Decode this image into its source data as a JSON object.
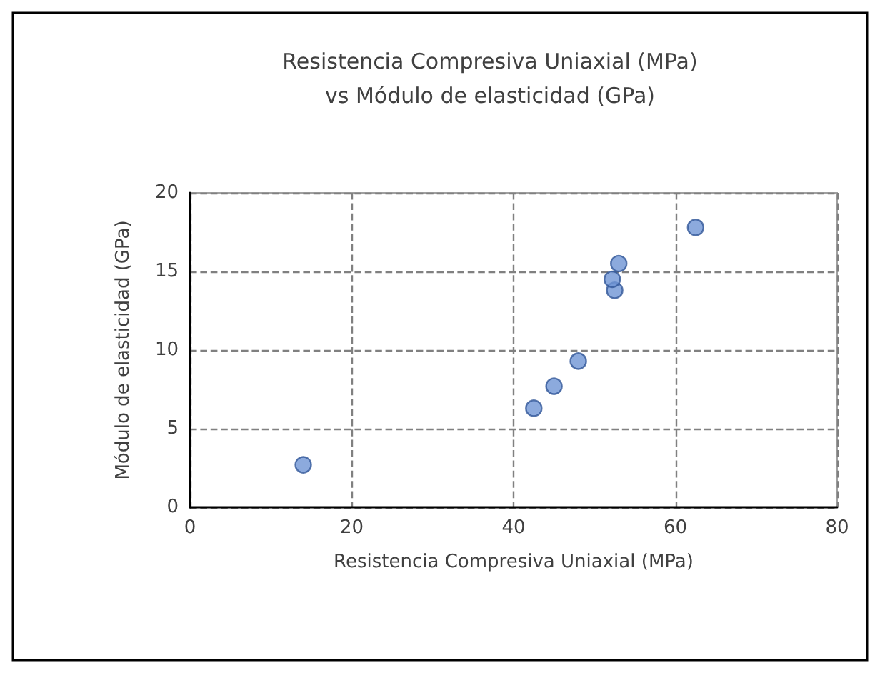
{
  "chart_data": {
    "type": "scatter",
    "title": "Resistencia Compresiva Uniaxial (MPa)\nvs Módulo de elasticidad (GPa)",
    "xlabel": "Resistencia Compresiva Uniaxial (MPa)",
    "ylabel": "Módulo de elasticidad (GPa)",
    "x": [
      14,
      42.5,
      45,
      48,
      52.5,
      52.2,
      53,
      62.5
    ],
    "series": [
      {
        "color": "#6f95d4",
        "values": [
          2.7,
          6.3,
          7.7,
          9.3,
          13.8,
          14.5,
          15.5,
          17.8
        ]
      }
    ],
    "xlim": [
      0,
      80
    ],
    "xticks": [
      0,
      20,
      40,
      60,
      80
    ],
    "ylim": [
      0,
      20
    ],
    "yticks": [
      0,
      5,
      10,
      15,
      20
    ],
    "grid": true,
    "marker": "circle"
  }
}
